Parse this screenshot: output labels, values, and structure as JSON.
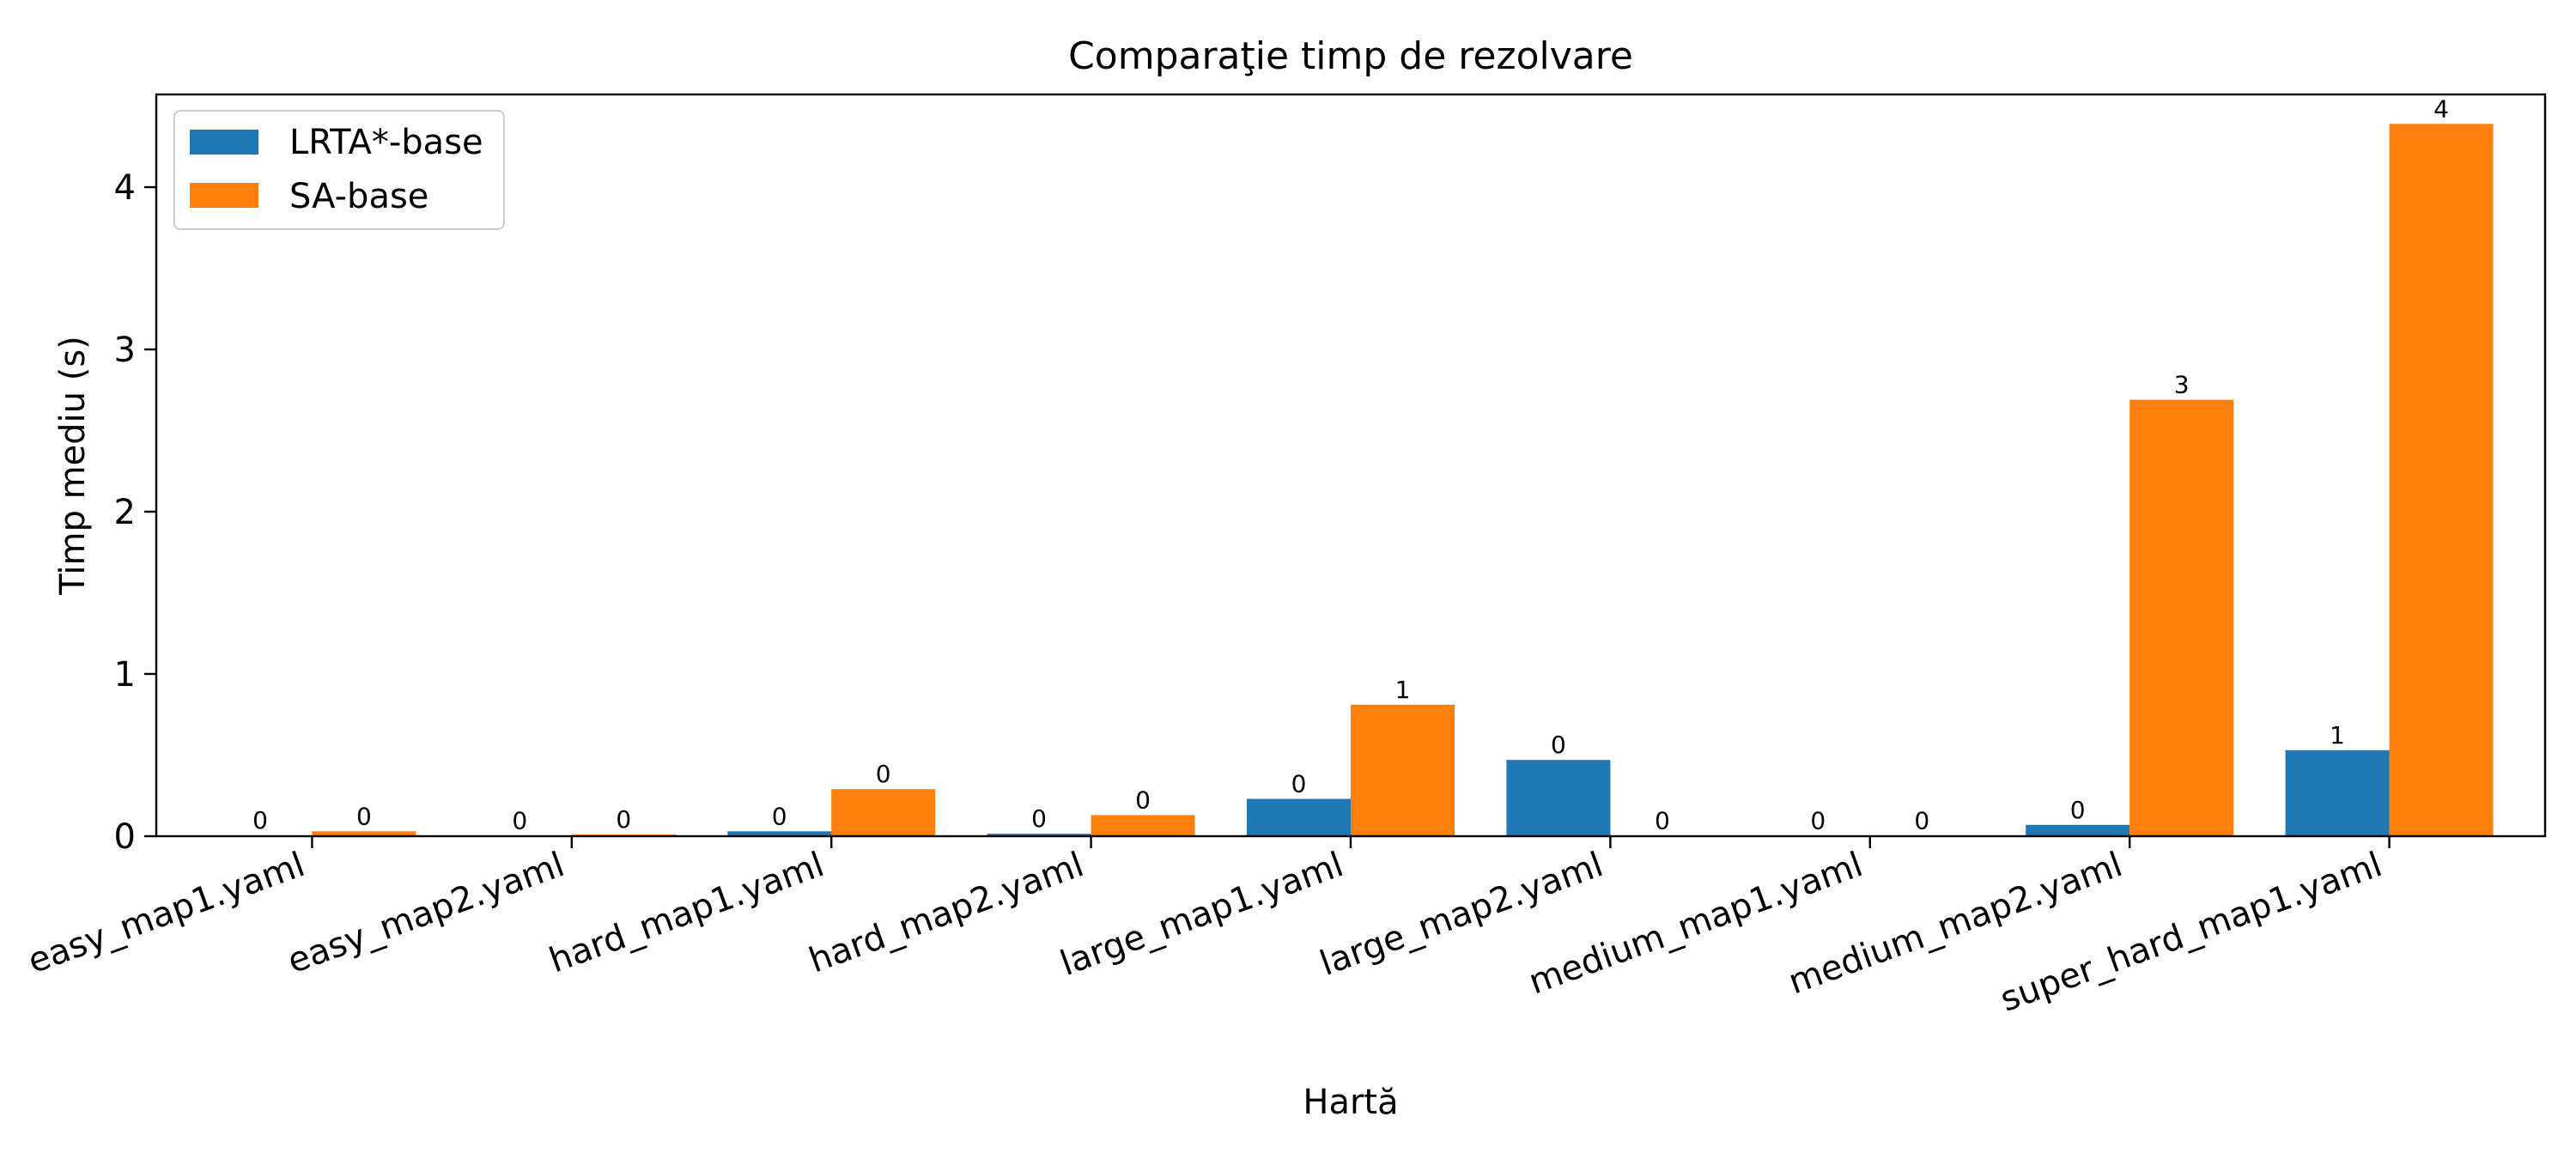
{
  "chart_data": {
    "type": "bar",
    "title": "Comparaţie timp de rezolvare",
    "xlabel": "Hartă",
    "ylabel": "Timp mediu (s)",
    "categories": [
      "easy_map1.yaml",
      "easy_map2.yaml",
      "hard_map1.yaml",
      "hard_map2.yaml",
      "large_map1.yaml",
      "large_map2.yaml",
      "medium_map1.yaml",
      "medium_map2.yaml",
      "super_hard_map1.yaml"
    ],
    "series": [
      {
        "name": "LRTA*-base",
        "color": "#1f77b4",
        "values": [
          0.004,
          0.003,
          0.03,
          0.015,
          0.23,
          0.47,
          0.003,
          0.07,
          0.53
        ],
        "labels": [
          "0",
          "0",
          "0",
          "0",
          "0",
          "0",
          "0",
          "0",
          "1"
        ]
      },
      {
        "name": "SA-base",
        "color": "#ff7f0e",
        "values": [
          0.03,
          0.01,
          0.29,
          0.13,
          0.81,
          0.003,
          0.003,
          2.69,
          4.39
        ],
        "labels": [
          "0",
          "0",
          "0",
          "0",
          "1",
          "0",
          "0",
          "3",
          "4"
        ]
      }
    ],
    "yticks": [
      "0",
      "1",
      "2",
      "3",
      "4"
    ],
    "ylim": [
      0,
      4.6
    ],
    "grid": false,
    "legend": "top-left"
  }
}
